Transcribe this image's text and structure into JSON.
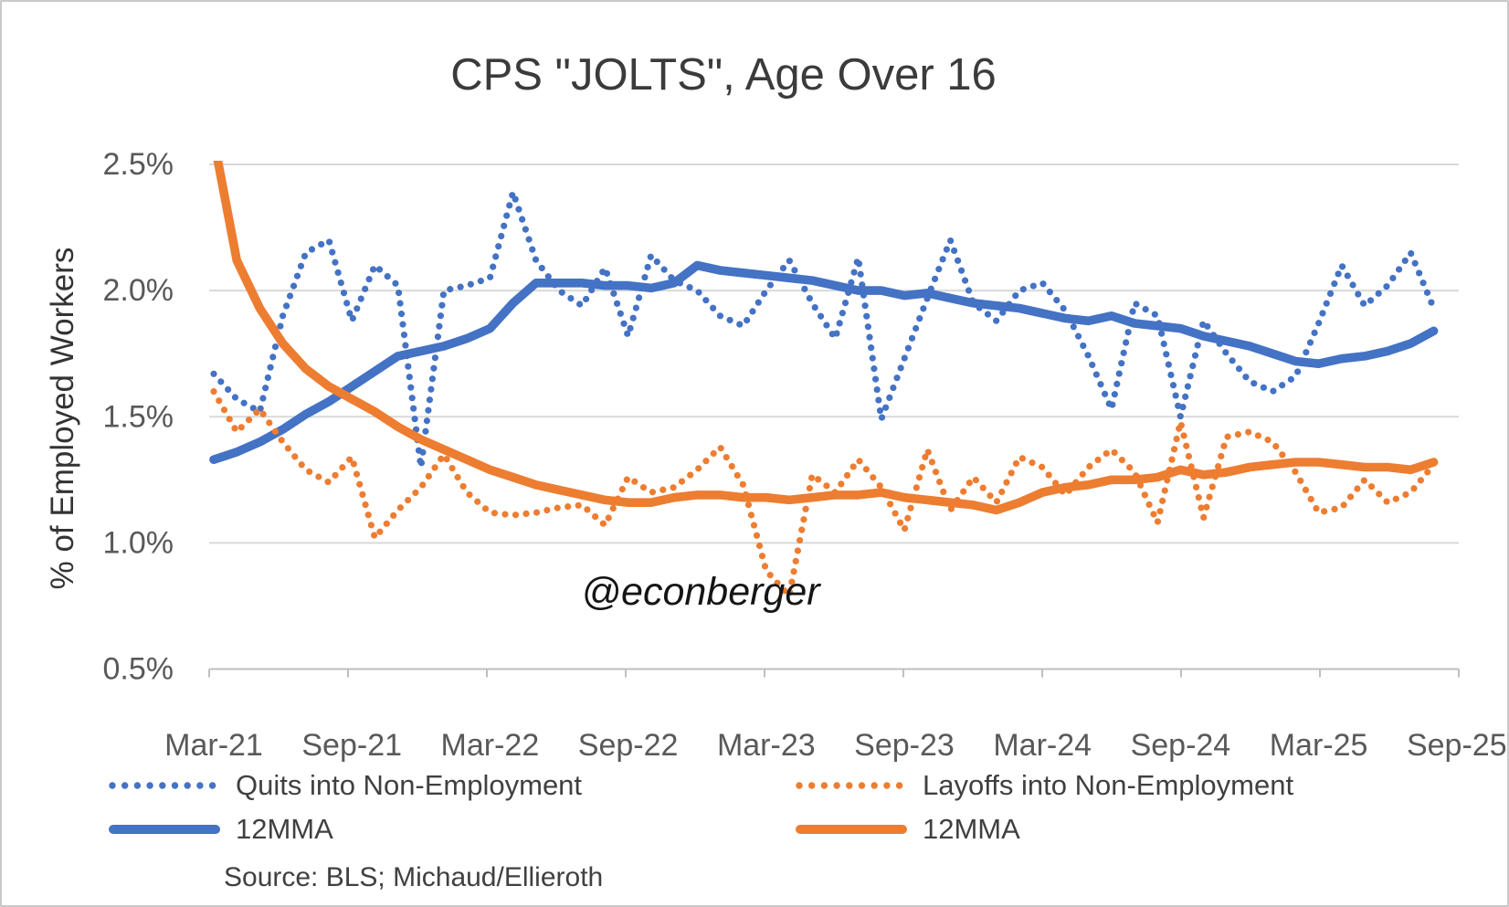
{
  "chart_data": {
    "type": "line",
    "title": "CPS \"JOLTS\", Age Over 16",
    "ylabel": "% of Employed Workers",
    "watermark": "@econberger",
    "source_note": "Source: BLS; Michaud/Ellieroth",
    "x_tick_labels": [
      "Mar-21",
      "Sep-21",
      "Mar-22",
      "Sep-22",
      "Mar-23",
      "Sep-23",
      "Mar-24",
      "Sep-24",
      "Mar-25",
      "Sep-25"
    ],
    "x_start_month": "Mar-21",
    "x_frequency": "monthly",
    "y_ticks": [
      2.5,
      2.0,
      1.5,
      1.0,
      0.5
    ],
    "y_tick_labels": [
      "2.5%",
      "2.0%",
      "1.5%",
      "1.0%",
      "0.5%"
    ],
    "ylim": [
      0.5,
      2.5
    ],
    "grid": true,
    "legend_position": "bottom",
    "colors": {
      "blue": "#4472C4",
      "orange": "#ED7D31",
      "gridline": "#D9D9D9",
      "axis": "#BFBFBF"
    },
    "series": [
      {
        "name": "Quits into Non-Employment",
        "style": "dotted",
        "color": "#4472C4",
        "values": [
          1.67,
          1.57,
          1.52,
          1.9,
          2.15,
          2.2,
          1.88,
          2.1,
          2.02,
          1.3,
          2.0,
          2.02,
          2.05,
          2.39,
          2.12,
          2.0,
          1.94,
          2.09,
          1.82,
          2.14,
          2.04,
          2.0,
          1.9,
          1.86,
          2.0,
          2.12,
          1.95,
          1.81,
          2.13,
          1.49,
          1.73,
          1.97,
          2.2,
          1.95,
          1.88,
          2.0,
          2.03,
          1.92,
          1.74,
          1.53,
          1.95,
          1.9,
          1.5,
          1.88,
          1.75,
          1.64,
          1.6,
          1.66,
          1.87,
          2.1,
          1.94,
          2.02,
          2.15,
          1.93
        ]
      },
      {
        "name": "12MMA",
        "of": "Quits into Non-Employment",
        "style": "solid",
        "color": "#4472C4",
        "values": [
          1.33,
          1.36,
          1.4,
          1.45,
          1.51,
          1.56,
          1.62,
          1.68,
          1.74,
          1.76,
          1.78,
          1.81,
          1.85,
          1.95,
          2.03,
          2.03,
          2.03,
          2.02,
          2.02,
          2.01,
          2.03,
          2.1,
          2.08,
          2.07,
          2.06,
          2.05,
          2.04,
          2.02,
          2.0,
          2.0,
          1.98,
          1.99,
          1.97,
          1.95,
          1.94,
          1.93,
          1.91,
          1.89,
          1.88,
          1.9,
          1.87,
          1.86,
          1.85,
          1.82,
          1.8,
          1.78,
          1.75,
          1.72,
          1.71,
          1.73,
          1.74,
          1.76,
          1.79,
          1.84
        ]
      },
      {
        "name": "Layoffs into Non-Employment",
        "style": "dotted",
        "color": "#ED7D31",
        "values": [
          1.6,
          1.44,
          1.53,
          1.4,
          1.29,
          1.24,
          1.34,
          1.02,
          1.13,
          1.22,
          1.35,
          1.2,
          1.12,
          1.11,
          1.12,
          1.14,
          1.15,
          1.07,
          1.26,
          1.2,
          1.22,
          1.29,
          1.38,
          1.23,
          0.89,
          0.79,
          1.27,
          1.2,
          1.33,
          1.22,
          1.05,
          1.37,
          1.13,
          1.26,
          1.16,
          1.34,
          1.3,
          1.19,
          1.3,
          1.37,
          1.28,
          1.08,
          1.48,
          1.1,
          1.42,
          1.44,
          1.4,
          1.28,
          1.12,
          1.14,
          1.25,
          1.16,
          1.2,
          1.31
        ]
      },
      {
        "name": "12MMA",
        "of": "Layoffs into Non-Employment",
        "style": "solid",
        "color": "#ED7D31",
        "values": [
          2.6,
          2.12,
          1.93,
          1.79,
          1.69,
          1.62,
          1.57,
          1.52,
          1.46,
          1.41,
          1.37,
          1.33,
          1.29,
          1.26,
          1.23,
          1.21,
          1.19,
          1.17,
          1.16,
          1.16,
          1.18,
          1.19,
          1.19,
          1.18,
          1.18,
          1.17,
          1.18,
          1.19,
          1.19,
          1.2,
          1.18,
          1.17,
          1.16,
          1.15,
          1.13,
          1.16,
          1.2,
          1.22,
          1.23,
          1.25,
          1.25,
          1.26,
          1.29,
          1.27,
          1.28,
          1.3,
          1.31,
          1.32,
          1.32,
          1.31,
          1.3,
          1.3,
          1.29,
          1.32
        ]
      }
    ],
    "legend": [
      {
        "label": "Quits into Non-Employment",
        "style": "dotted",
        "color": "#4472C4"
      },
      {
        "label": "Layoffs into Non-Employment",
        "style": "dotted",
        "color": "#ED7D31"
      },
      {
        "label": "12MMA",
        "style": "solid",
        "color": "#4472C4"
      },
      {
        "label": "12MMA",
        "style": "solid",
        "color": "#ED7D31"
      }
    ]
  }
}
